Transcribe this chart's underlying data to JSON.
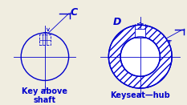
{
  "bg_color": "#f0ede0",
  "dc": "#0000cc",
  "tc": "#0000cc",
  "figsize": [
    2.33,
    1.31
  ],
  "dpi": 100,
  "label_left": "Key above\nshaft",
  "label_right": "Keyseat—hub",
  "dim_C": "C",
  "dim_D": "D",
  "dim_E": "E"
}
